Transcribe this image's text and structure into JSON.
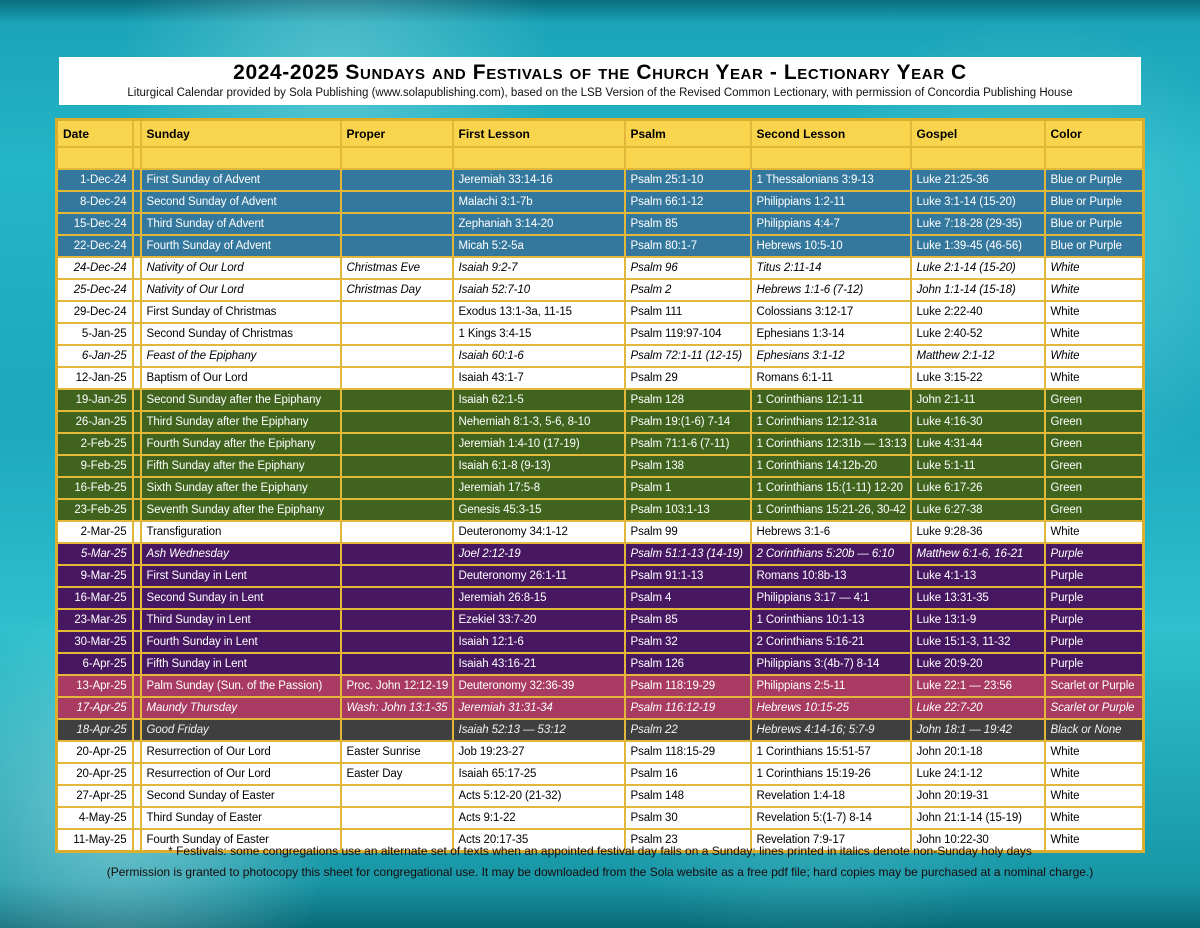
{
  "header": {
    "title": "2024-2025 Sundays and Festivals of the Church Year - Lectionary Year C",
    "subtitle": "Liturgical Calendar provided by Sola Publishing (www.solapublishing.com), based on the LSB Version of the Revised Common Lectionary, with permission of Concordia Publishing House"
  },
  "table": {
    "columns": [
      "Date",
      "Sunday",
      "Proper",
      "First Lesson",
      "Psalm",
      "Second Lesson",
      "Gospel",
      "Color"
    ],
    "rows": [
      {
        "date": "1-Dec-24",
        "sunday": "First Sunday of Advent",
        "proper": "",
        "first_lesson": "Jeremiah 33:14-16",
        "psalm": "Psalm 25:1-10",
        "second_lesson": "1 Thessalonians 3:9-13",
        "gospel": "Luke 21:25-36",
        "color": "Blue or Purple",
        "theme": "blue",
        "italic": false
      },
      {
        "date": "8-Dec-24",
        "sunday": "Second Sunday of Advent",
        "proper": "",
        "first_lesson": "Malachi 3:1-7b",
        "psalm": "Psalm 66:1-12",
        "second_lesson": "Philippians 1:2-11",
        "gospel": "Luke 3:1-14 (15-20)",
        "color": "Blue or Purple",
        "theme": "blue",
        "italic": false
      },
      {
        "date": "15-Dec-24",
        "sunday": "Third Sunday of Advent",
        "proper": "",
        "first_lesson": "Zephaniah 3:14-20",
        "psalm": "Psalm 85",
        "second_lesson": "Philippians 4:4-7",
        "gospel": "Luke 7:18-28 (29-35)",
        "color": "Blue or Purple",
        "theme": "blue",
        "italic": false
      },
      {
        "date": "22-Dec-24",
        "sunday": "Fourth Sunday of Advent",
        "proper": "",
        "first_lesson": "Micah 5:2-5a",
        "psalm": "Psalm 80:1-7",
        "second_lesson": "Hebrews 10:5-10",
        "gospel": "Luke 1:39-45 (46-56)",
        "color": "Blue or Purple",
        "theme": "blue",
        "italic": false
      },
      {
        "date": "24-Dec-24",
        "sunday": "Nativity of Our Lord",
        "proper": "Christmas Eve",
        "first_lesson": "Isaiah 9:2-7",
        "psalm": "Psalm 96",
        "second_lesson": "Titus 2:11-14",
        "gospel": "Luke 2:1-14 (15-20)",
        "color": "White",
        "theme": "white",
        "italic": true
      },
      {
        "date": "25-Dec-24",
        "sunday": "Nativity of Our Lord",
        "proper": "Christmas Day",
        "first_lesson": "Isaiah 52:7-10",
        "psalm": "Psalm 2",
        "second_lesson": "Hebrews 1:1-6 (7-12)",
        "gospel": "John 1:1-14 (15-18)",
        "color": "White",
        "theme": "white",
        "italic": true
      },
      {
        "date": "29-Dec-24",
        "sunday": "First Sunday of Christmas",
        "proper": "",
        "first_lesson": "Exodus 13:1-3a, 11-15",
        "psalm": "Psalm 111",
        "second_lesson": "Colossians 3:12-17",
        "gospel": "Luke 2:22-40",
        "color": "White",
        "theme": "white",
        "italic": false
      },
      {
        "date": "5-Jan-25",
        "sunday": "Second Sunday of Christmas",
        "proper": "",
        "first_lesson": "1 Kings 3:4-15",
        "psalm": "Psalm 119:97-104",
        "second_lesson": "Ephesians 1:3-14",
        "gospel": "Luke 2:40-52",
        "color": "White",
        "theme": "white",
        "italic": false
      },
      {
        "date": "6-Jan-25",
        "sunday": "Feast of the Epiphany",
        "proper": "",
        "first_lesson": "Isaiah 60:1-6",
        "psalm": "Psalm 72:1-11 (12-15)",
        "second_lesson": "Ephesians 3:1-12",
        "gospel": "Matthew 2:1-12",
        "color": "White",
        "theme": "white",
        "italic": true
      },
      {
        "date": "12-Jan-25",
        "sunday": "Baptism of Our Lord",
        "proper": "",
        "first_lesson": "Isaiah 43:1-7",
        "psalm": "Psalm 29",
        "second_lesson": "Romans 6:1-11",
        "gospel": "Luke 3:15-22",
        "color": "White",
        "theme": "white",
        "italic": false
      },
      {
        "date": "19-Jan-25",
        "sunday": "Second Sunday after the Epiphany",
        "proper": "",
        "first_lesson": "Isaiah 62:1-5",
        "psalm": "Psalm 128",
        "second_lesson": "1 Corinthians 12:1-11",
        "gospel": "John 2:1-11",
        "color": "Green",
        "theme": "green",
        "italic": false
      },
      {
        "date": "26-Jan-25",
        "sunday": "Third Sunday after the Epiphany",
        "proper": "",
        "first_lesson": "Nehemiah 8:1-3, 5-6, 8-10",
        "psalm": "Psalm 19:(1-6) 7-14",
        "second_lesson": "1 Corinthians 12:12-31a",
        "gospel": "Luke 4:16-30",
        "color": "Green",
        "theme": "green",
        "italic": false
      },
      {
        "date": "2-Feb-25",
        "sunday": "Fourth Sunday after the Epiphany",
        "proper": "",
        "first_lesson": "Jeremiah 1:4-10 (17-19)",
        "psalm": "Psalm 71:1-6 (7-11)",
        "second_lesson": "1 Corinthians 12:31b — 13:13",
        "gospel": "Luke 4:31-44",
        "color": "Green",
        "theme": "green",
        "italic": false
      },
      {
        "date": "9-Feb-25",
        "sunday": "Fifth Sunday after the Epiphany",
        "proper": "",
        "first_lesson": "Isaiah 6:1-8 (9-13)",
        "psalm": "Psalm 138",
        "second_lesson": "1 Corinthians 14:12b-20",
        "gospel": "Luke 5:1-11",
        "color": "Green",
        "theme": "green",
        "italic": false
      },
      {
        "date": "16-Feb-25",
        "sunday": "Sixth Sunday after the Epiphany",
        "proper": "",
        "first_lesson": "Jeremiah 17:5-8",
        "psalm": "Psalm 1",
        "second_lesson": "1 Corinthians 15:(1-11) 12-20",
        "gospel": "Luke 6:17-26",
        "color": "Green",
        "theme": "green",
        "italic": false
      },
      {
        "date": "23-Feb-25",
        "sunday": "Seventh Sunday after the Epiphany",
        "proper": "",
        "first_lesson": "Genesis 45:3-15",
        "psalm": "Psalm 103:1-13",
        "second_lesson": "1 Corinthians 15:21-26, 30-42",
        "gospel": "Luke 6:27-38",
        "color": "Green",
        "theme": "green",
        "italic": false
      },
      {
        "date": "2-Mar-25",
        "sunday": "Transfiguration",
        "proper": "",
        "first_lesson": "Deuteronomy 34:1-12",
        "psalm": "Psalm 99",
        "second_lesson": "Hebrews 3:1-6",
        "gospel": "Luke 9:28-36",
        "color": "White",
        "theme": "white",
        "italic": false
      },
      {
        "date": "5-Mar-25",
        "sunday": "Ash Wednesday",
        "proper": "",
        "first_lesson": "Joel 2:12-19",
        "psalm": "Psalm 51:1-13 (14-19)",
        "second_lesson": "2 Corinthians 5:20b — 6:10",
        "gospel": "Matthew 6:1-6, 16-21",
        "color": "Purple",
        "theme": "purple",
        "italic": true
      },
      {
        "date": "9-Mar-25",
        "sunday": "First Sunday in Lent",
        "proper": "",
        "first_lesson": "Deuteronomy 26:1-11",
        "psalm": "Psalm 91:1-13",
        "second_lesson": "Romans 10:8b-13",
        "gospel": "Luke 4:1-13",
        "color": "Purple",
        "theme": "purple",
        "italic": false
      },
      {
        "date": "16-Mar-25",
        "sunday": "Second Sunday in Lent",
        "proper": "",
        "first_lesson": "Jeremiah 26:8-15",
        "psalm": "Psalm 4",
        "second_lesson": "Philippians 3:17 — 4:1",
        "gospel": "Luke 13:31-35",
        "color": "Purple",
        "theme": "purple",
        "italic": false
      },
      {
        "date": "23-Mar-25",
        "sunday": "Third Sunday in Lent",
        "proper": "",
        "first_lesson": "Ezekiel 33:7-20",
        "psalm": "Psalm 85",
        "second_lesson": "1 Corinthians 10:1-13",
        "gospel": "Luke 13:1-9",
        "color": "Purple",
        "theme": "purple",
        "italic": false
      },
      {
        "date": "30-Mar-25",
        "sunday": "Fourth Sunday in Lent",
        "proper": "",
        "first_lesson": "Isaiah 12:1-6",
        "psalm": "Psalm 32",
        "second_lesson": "2 Corinthians 5:16-21",
        "gospel": "Luke 15:1-3, 11-32",
        "color": "Purple",
        "theme": "purple",
        "italic": false
      },
      {
        "date": "6-Apr-25",
        "sunday": "Fifth Sunday in Lent",
        "proper": "",
        "first_lesson": "Isaiah 43:16-21",
        "psalm": "Psalm 126",
        "second_lesson": "Philippians 3:(4b-7) 8-14",
        "gospel": "Luke 20:9-20",
        "color": "Purple",
        "theme": "purple",
        "italic": false
      },
      {
        "date": "13-Apr-25",
        "sunday": "Palm Sunday (Sun. of the Passion)",
        "proper": "Proc. John 12:12-19",
        "first_lesson": "Deuteronomy 32:36-39",
        "psalm": "Psalm 118:19-29",
        "second_lesson": "Philippians 2:5-11",
        "gospel": "Luke 22:1 — 23:56",
        "color": "Scarlet or Purple",
        "theme": "scarlet",
        "italic": false
      },
      {
        "date": "17-Apr-25",
        "sunday": "Maundy Thursday",
        "proper": "Wash: John 13:1-35",
        "first_lesson": "Jeremiah 31:31-34",
        "psalm": "Psalm 116:12-19",
        "second_lesson": "Hebrews 10:15-25",
        "gospel": "Luke 22:7-20",
        "color": "Scarlet or Purple",
        "theme": "scarlet",
        "italic": true
      },
      {
        "date": "18-Apr-25",
        "sunday": "Good Friday",
        "proper": "",
        "first_lesson": "Isaiah 52:13 — 53:12",
        "psalm": "Psalm 22",
        "second_lesson": "Hebrews 4:14-16; 5:7-9",
        "gospel": "John 18:1 — 19:42",
        "color": "Black or None",
        "theme": "dark",
        "italic": true
      },
      {
        "date": "20-Apr-25",
        "sunday": "Resurrection of Our Lord",
        "proper": "Easter Sunrise",
        "first_lesson": "Job 19:23-27",
        "psalm": "Psalm 118:15-29",
        "second_lesson": "1 Corinthians 15:51-57",
        "gospel": "John 20:1-18",
        "color": "White",
        "theme": "white",
        "italic": false
      },
      {
        "date": "20-Apr-25",
        "sunday": "Resurrection of Our Lord",
        "proper": "Easter Day",
        "first_lesson": "Isaiah 65:17-25",
        "psalm": "Psalm 16",
        "second_lesson": "1 Corinthians 15:19-26",
        "gospel": "Luke 24:1-12",
        "color": "White",
        "theme": "white",
        "italic": false
      },
      {
        "date": "27-Apr-25",
        "sunday": "Second Sunday of Easter",
        "proper": "",
        "first_lesson": "Acts 5:12-20 (21-32)",
        "psalm": "Psalm 148",
        "second_lesson": "Revelation 1:4-18",
        "gospel": "John 20:19-31",
        "color": "White",
        "theme": "white",
        "italic": false
      },
      {
        "date": "4-May-25",
        "sunday": "Third Sunday of Easter",
        "proper": "",
        "first_lesson": "Acts 9:1-22",
        "psalm": "Psalm 30",
        "second_lesson": "Revelation 5:(1-7) 8-14",
        "gospel": "John 21:1-14 (15-19)",
        "color": "White",
        "theme": "white",
        "italic": false
      },
      {
        "date": "11-May-25",
        "sunday": "Fourth Sunday of Easter",
        "proper": "",
        "first_lesson": "Acts 20:17-35",
        "psalm": "Psalm 23",
        "second_lesson": "Revelation 7:9-17",
        "gospel": "John 10:22-30",
        "color": "White",
        "theme": "white",
        "italic": false
      }
    ]
  },
  "colors": {
    "gold_border": "#e2b73a",
    "header_bg": "#f8d54d",
    "themes": {
      "blue": {
        "bg": "#34789e",
        "text": "#ffffff"
      },
      "white": {
        "bg": "#ffffff",
        "text": "#000000"
      },
      "green": {
        "bg": "#40641e",
        "text": "#ffffff"
      },
      "purple": {
        "bg": "#471762",
        "text": "#ffffff"
      },
      "scarlet": {
        "bg": "#a93b63",
        "text": "#ffffff"
      },
      "dark": {
        "bg": "#3f3f3f",
        "text": "#f2f2f2"
      }
    }
  },
  "footer": {
    "line1": "* Festivals: some congregations use an alternate set of texts when an appointed festival day falls on a Sunday; lines printed in italics denote non-Sunday holy days",
    "line2": "(Permission is granted to photocopy this sheet for congregational use. It may be downloaded from the Sola website as a free pdf file; hard copies may be purchased at a nominal charge.)"
  }
}
